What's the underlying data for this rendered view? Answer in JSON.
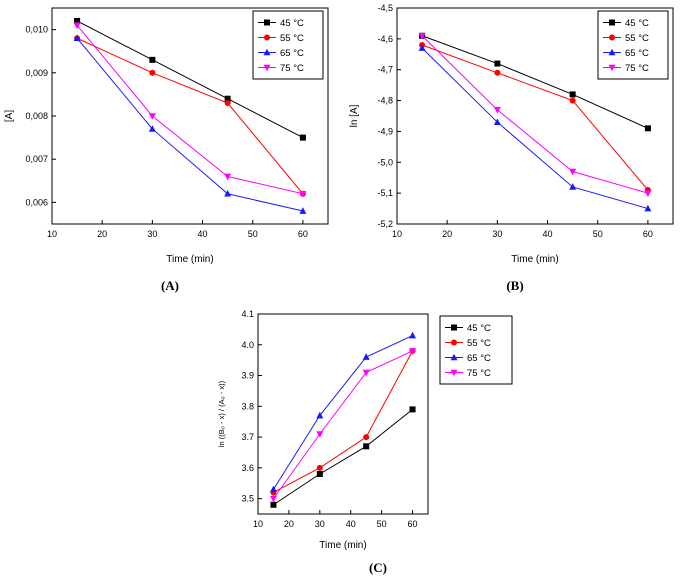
{
  "figure": {
    "captions": {
      "a": "(A)",
      "b": "(B)",
      "c": "(C)"
    }
  },
  "chart_data": [
    {
      "id": "A",
      "type": "line",
      "title": "",
      "xlabel": "Time (min)",
      "ylabel": "[A]",
      "xlim": [
        10,
        65
      ],
      "xticks": [
        10,
        20,
        30,
        40,
        50,
        60
      ],
      "xtick_labels": [
        "10",
        "20",
        "30",
        "40",
        "50",
        "60"
      ],
      "ylim": [
        0.0055,
        0.0105
      ],
      "yticks": [
        0.006,
        0.007,
        0.008,
        0.009,
        0.01
      ],
      "ytick_labels": [
        "0,006",
        "0,007",
        "0,008",
        "0,009",
        "0,010"
      ],
      "x": [
        15,
        30,
        45,
        60
      ],
      "grid": false,
      "legend_position": "inside-top-right",
      "series": [
        {
          "name": "45 °C",
          "color": "#000000",
          "marker": "square",
          "values": [
            0.0102,
            0.0093,
            0.0084,
            0.0075
          ]
        },
        {
          "name": "55 °C",
          "color": "#ff0000",
          "marker": "circle",
          "values": [
            0.0098,
            0.009,
            0.0083,
            0.0062
          ]
        },
        {
          "name": "65 °C",
          "color": "#1a1aff",
          "marker": "triangle-up",
          "values": [
            0.0098,
            0.0077,
            0.0062,
            0.0058
          ]
        },
        {
          "name": "75 °C",
          "color": "#ff00ff",
          "marker": "triangle-down",
          "values": [
            0.0101,
            0.008,
            0.0066,
            0.0062
          ]
        }
      ]
    },
    {
      "id": "B",
      "type": "line",
      "title": "",
      "xlabel": "Time (min)",
      "ylabel": "ln [A]",
      "xlim": [
        10,
        65
      ],
      "xticks": [
        10,
        20,
        30,
        40,
        50,
        60
      ],
      "xtick_labels": [
        "10",
        "20",
        "30",
        "40",
        "50",
        "60"
      ],
      "ylim": [
        -5.2,
        -4.5
      ],
      "yticks": [
        -5.2,
        -5.1,
        -5.0,
        -4.9,
        -4.8,
        -4.7,
        -4.6,
        -4.5
      ],
      "ytick_labels": [
        "-5,2",
        "-5,1",
        "-5,0",
        "-4,9",
        "-4,8",
        "-4,7",
        "-4,6",
        "-4,5"
      ],
      "x": [
        15,
        30,
        45,
        60
      ],
      "grid": false,
      "legend_position": "inside-top-right",
      "series": [
        {
          "name": "45 °C",
          "color": "#000000",
          "marker": "square",
          "values": [
            -4.59,
            -4.68,
            -4.78,
            -4.89
          ]
        },
        {
          "name": "55 °C",
          "color": "#ff0000",
          "marker": "circle",
          "values": [
            -4.62,
            -4.71,
            -4.8,
            -5.09
          ]
        },
        {
          "name": "65 °C",
          "color": "#1a1aff",
          "marker": "triangle-up",
          "values": [
            -4.63,
            -4.87,
            -5.08,
            -5.15
          ]
        },
        {
          "name": "75 °C",
          "color": "#ff00ff",
          "marker": "triangle-down",
          "values": [
            -4.59,
            -4.83,
            -5.03,
            -5.1
          ]
        }
      ]
    },
    {
      "id": "C",
      "type": "line",
      "title": "",
      "xlabel": "Time (min)",
      "ylabel": "ln ((B₀ - x) / (A₀ - x))",
      "xlim": [
        10,
        65
      ],
      "xticks": [
        10,
        20,
        30,
        40,
        50,
        60
      ],
      "xtick_labels": [
        "10",
        "20",
        "30",
        "40",
        "50",
        "60"
      ],
      "ylim": [
        3.45,
        4.1
      ],
      "yticks": [
        3.5,
        3.6,
        3.7,
        3.8,
        3.9,
        4.0,
        4.1
      ],
      "ytick_labels": [
        "3.5",
        "3.6",
        "3.7",
        "3.8",
        "3.9",
        "4.0",
        "4.1"
      ],
      "x": [
        15,
        30,
        45,
        60
      ],
      "grid": false,
      "legend_position": "outside-right",
      "series": [
        {
          "name": "45 °C",
          "color": "#000000",
          "marker": "square",
          "values": [
            3.48,
            3.58,
            3.67,
            3.79
          ]
        },
        {
          "name": "55 °C",
          "color": "#ff0000",
          "marker": "circle",
          "values": [
            3.52,
            3.6,
            3.7,
            3.98
          ]
        },
        {
          "name": "65 °C",
          "color": "#1a1aff",
          "marker": "triangle-up",
          "values": [
            3.53,
            3.77,
            3.96,
            4.03
          ]
        },
        {
          "name": "75 °C",
          "color": "#ff00ff",
          "marker": "triangle-down",
          "values": [
            3.5,
            3.71,
            3.91,
            3.98
          ]
        }
      ]
    }
  ]
}
